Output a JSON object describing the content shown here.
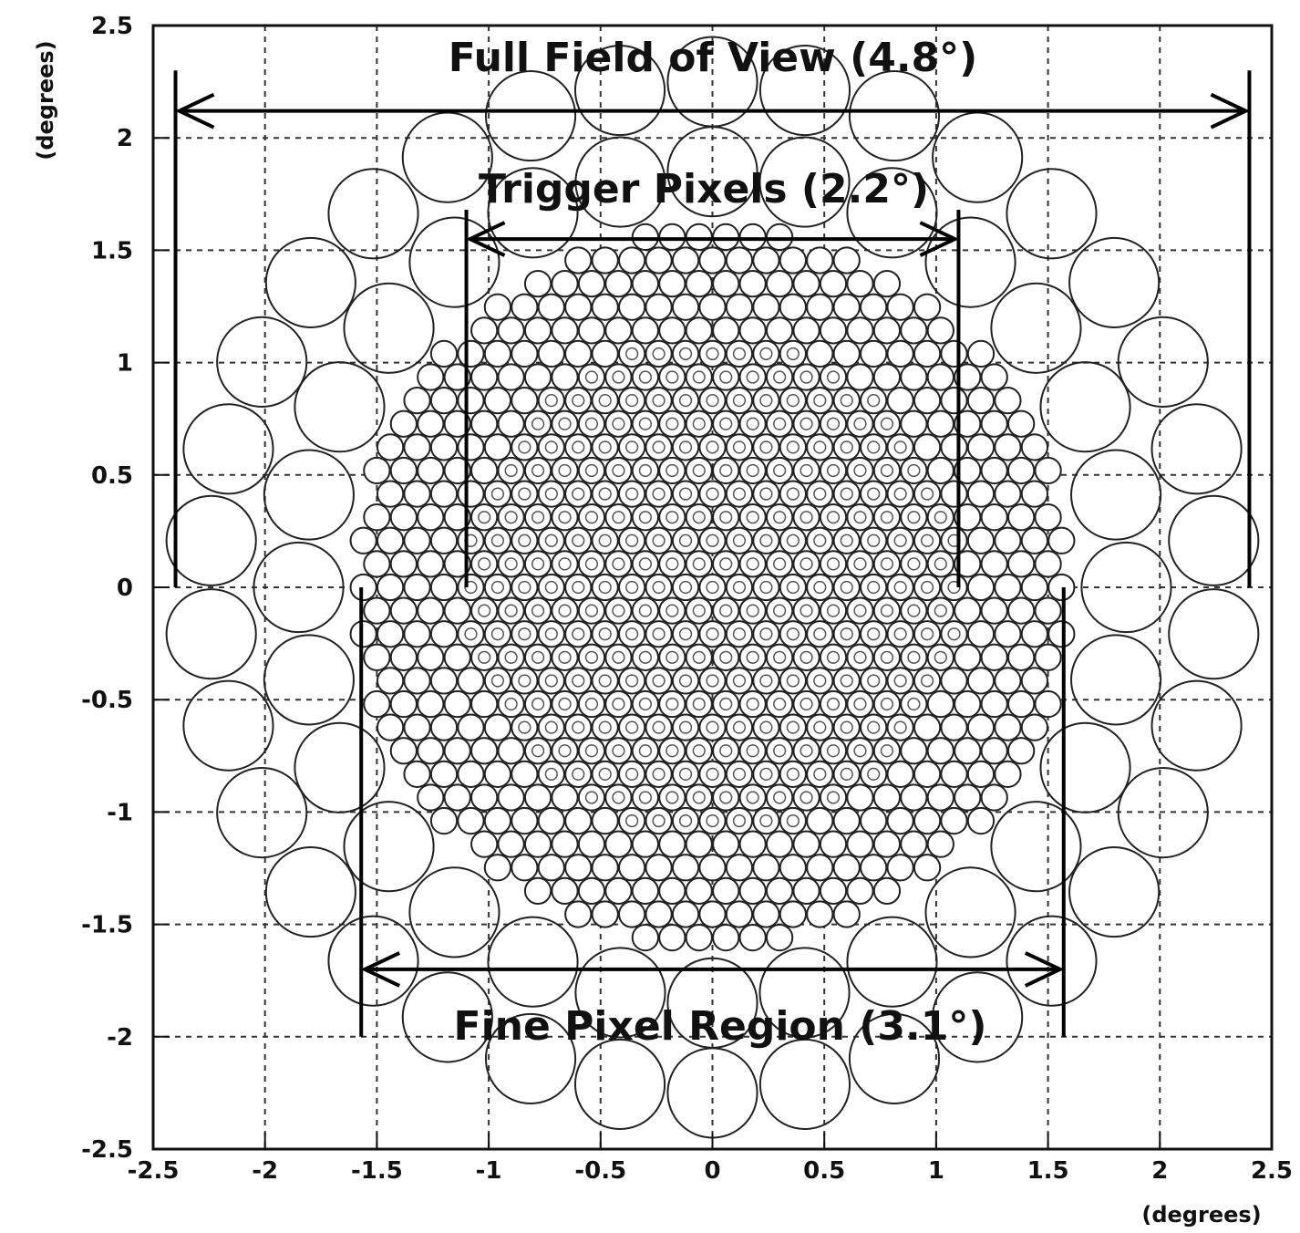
{
  "axes": {
    "x_ticks": [
      "-2.5",
      "-2",
      "-1.5",
      "-1",
      "-0.5",
      "0",
      "0.5",
      "1",
      "1.5",
      "2",
      "2.5"
    ],
    "y_ticks": [
      "2.5",
      "2",
      "1.5",
      "1",
      "0.5",
      "0",
      "-0.5",
      "-1",
      "-1.5",
      "-2",
      "-2.5"
    ],
    "x_unit": "(degrees)",
    "y_unit": "(degrees)",
    "range": [
      -2.5,
      2.5
    ]
  },
  "regions": {
    "full_fov": {
      "label": "Full Field of View (4.8°)",
      "extent_deg": [
        -2.4,
        2.4
      ]
    },
    "trigger": {
      "label": "Trigger Pixels (2.2°)",
      "extent_deg": [
        -1.1,
        1.1
      ]
    },
    "fine": {
      "label": "Fine Pixel Region (3.1°)",
      "extent_deg": [
        -1.57,
        1.57
      ]
    }
  },
  "pixels": {
    "fine_pixel_pitch_deg": 0.12,
    "fine_region_radius_deg": 1.6,
    "trigger_region_radius_deg": 1.1,
    "outer_pixel_diameter_deg": 0.4,
    "outer_ring_radii_deg": [
      1.85,
      2.25
    ]
  }
}
